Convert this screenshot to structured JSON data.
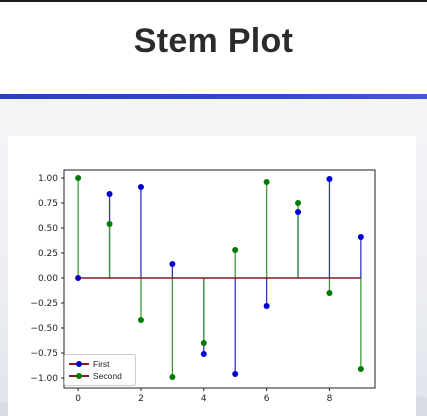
{
  "slide": {
    "title": "Stem Plot"
  },
  "colors": {
    "accent_bar": "#3346d6",
    "series_first": "#0000cc",
    "series_first_stem": "#3333bb",
    "series_second": "#007a00",
    "series_second_stem": "#3d9a3d",
    "baseline": "#8b1a1a"
  },
  "chart_data": {
    "type": "stem",
    "title": "",
    "xlabel": "",
    "ylabel": "",
    "x": [
      0,
      1,
      2,
      3,
      4,
      5,
      6,
      7,
      8,
      9
    ],
    "series": [
      {
        "name": "First",
        "values": [
          0.0,
          0.84,
          0.91,
          0.14,
          -0.76,
          -0.96,
          -0.28,
          0.66,
          0.99,
          0.41
        ]
      },
      {
        "name": "Second",
        "values": [
          1.0,
          0.54,
          -0.42,
          -0.99,
          -0.65,
          0.28,
          0.96,
          0.75,
          -0.15,
          -0.91
        ]
      }
    ],
    "xlim": [
      -0.45,
      9.45
    ],
    "ylim": [
      -1.1,
      1.08
    ],
    "xticks": [
      "0",
      "2",
      "4",
      "6",
      "8"
    ],
    "xtick_values": [
      0,
      2,
      4,
      6,
      8
    ],
    "yticks": [
      "1.00",
      "0.75",
      "0.50",
      "0.25",
      "0.00",
      "−0.25",
      "−0.50",
      "−0.75",
      "−1.00"
    ],
    "ytick_values": [
      1.0,
      0.75,
      0.5,
      0.25,
      0.0,
      -0.25,
      -0.5,
      -0.75,
      -1.0
    ],
    "baseline": 0,
    "grid": false,
    "legend_position": "lower-left"
  }
}
